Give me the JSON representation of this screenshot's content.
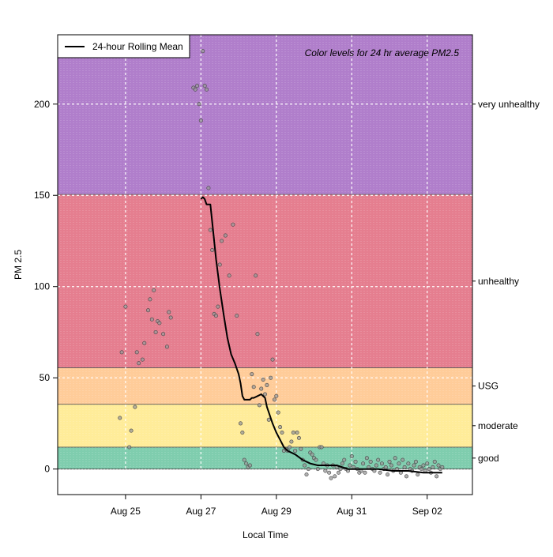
{
  "chart_data": {
    "type": "scatter",
    "title": "",
    "xlabel": "Local Time",
    "ylabel": "PM 2.5",
    "xlim": [
      22.9,
      33.9
    ],
    "ylim": [
      -14,
      238
    ],
    "x_ticks": [
      {
        "value": 24.7,
        "label": "Aug 25"
      },
      {
        "value": 26.7,
        "label": "Aug 27"
      },
      {
        "value": 28.7,
        "label": "Aug 29"
      },
      {
        "value": 30.7,
        "label": "Aug 31"
      },
      {
        "value": 32.7,
        "label": "Sep 02"
      }
    ],
    "y_ticks": [
      0,
      50,
      100,
      150,
      200
    ],
    "legend": {
      "position": "top-left",
      "entries": [
        "24-hour Rolling Mean"
      ]
    },
    "annotation": "Color levels for 24 hr average PM2.5",
    "bands": [
      {
        "name": "good",
        "label": "good",
        "from": 0,
        "to": 12,
        "color": "#7fcdae"
      },
      {
        "name": "moderate",
        "label": "moderate",
        "from": 12,
        "to": 35.5,
        "color": "#ffec99"
      },
      {
        "name": "usg",
        "label": "USG",
        "from": 35.5,
        "to": 55.5,
        "color": "#ffcc99"
      },
      {
        "name": "unhealthy",
        "label": "unhealthy",
        "from": 55.5,
        "to": 150.5,
        "color": "#e57e8f"
      },
      {
        "name": "very-unhealthy",
        "label": "very unhealthy",
        "from": 150.5,
        "to": 238,
        "color": "#b07ecb"
      }
    ],
    "series": [
      {
        "name": "hourly",
        "kind": "points",
        "x": [
          24.55,
          24.6,
          24.7,
          24.8,
          24.85,
          24.95,
          25.0,
          25.05,
          25.15,
          25.2,
          25.3,
          25.35,
          25.4,
          25.45,
          25.5,
          25.55,
          25.6,
          25.7,
          25.8,
          25.85,
          25.9,
          26.5,
          26.55,
          26.6,
          26.65,
          26.7,
          26.75,
          26.8,
          26.85,
          26.9,
          26.95,
          27.0,
          27.05,
          27.1,
          27.15,
          27.2,
          27.25,
          27.35,
          27.45,
          27.55,
          27.65,
          27.75,
          27.8,
          27.85,
          27.9,
          27.95,
          28.0,
          28.05,
          28.1,
          28.15,
          28.2,
          28.25,
          28.3,
          28.35,
          28.4,
          28.45,
          28.5,
          28.55,
          28.6,
          28.65,
          28.7,
          28.75,
          28.8,
          28.85,
          28.9,
          28.95,
          29.0,
          29.05,
          29.1,
          29.15,
          29.2,
          29.25,
          29.3,
          29.35,
          29.4,
          29.45,
          29.5,
          29.55,
          29.6,
          29.65,
          29.7,
          29.75,
          29.8,
          29.85,
          29.9,
          29.95,
          30.0,
          30.05,
          30.1,
          30.15,
          30.2,
          30.25,
          30.3,
          30.35,
          30.4,
          30.45,
          30.5,
          30.55,
          30.6,
          30.65,
          30.7,
          30.75,
          30.8,
          30.85,
          30.9,
          30.95,
          31.0,
          31.05,
          31.1,
          31.15,
          31.2,
          31.25,
          31.3,
          31.35,
          31.4,
          31.45,
          31.5,
          31.55,
          31.6,
          31.65,
          31.7,
          31.75,
          31.8,
          31.85,
          31.9,
          31.95,
          32.0,
          32.05,
          32.1,
          32.15,
          32.2,
          32.25,
          32.3,
          32.35,
          32.4,
          32.45,
          32.5,
          32.55,
          32.6,
          32.65,
          32.7,
          32.75,
          32.8,
          32.85,
          32.9,
          32.95,
          33.0,
          33.05,
          33.1
        ],
        "y": [
          28,
          64,
          89,
          12,
          21,
          34,
          64,
          58,
          60,
          69,
          87,
          93,
          82,
          98,
          75,
          81,
          80,
          74,
          67,
          86,
          83,
          209,
          208,
          210,
          200,
          191,
          229,
          210,
          208,
          154,
          131,
          120,
          85,
          84,
          89,
          112,
          125,
          128,
          106,
          134,
          84,
          25,
          20,
          5,
          3,
          1,
          2,
          52,
          45,
          106,
          74,
          35,
          44,
          49,
          41,
          46,
          27,
          50,
          60,
          38,
          40,
          31,
          23,
          20,
          10,
          11,
          10,
          12,
          15,
          20,
          10,
          20,
          17,
          11,
          5,
          2,
          -3,
          0,
          9,
          8,
          6,
          5,
          0,
          12,
          12,
          3,
          -1,
          2,
          -2,
          -5,
          2,
          -4,
          1,
          -2,
          0,
          3,
          5,
          0,
          -1,
          2,
          7,
          1,
          4,
          0,
          -2,
          -1,
          3,
          -2,
          6,
          1,
          4,
          0,
          -1,
          2,
          5,
          -2,
          3,
          0,
          1,
          -3,
          4,
          2,
          -1,
          6,
          0,
          3,
          -2,
          5,
          1,
          -4,
          3,
          0,
          -1,
          2,
          4,
          -3,
          1,
          0,
          2,
          -1,
          3,
          0,
          -2,
          1,
          4,
          -4,
          2,
          0,
          1
        ]
      },
      {
        "name": "24-hour Rolling Mean",
        "kind": "line",
        "x": [
          26.7,
          26.75,
          26.8,
          26.85,
          26.9,
          26.95,
          27.0,
          27.1,
          27.2,
          27.3,
          27.4,
          27.5,
          27.6,
          27.7,
          27.75,
          27.8,
          27.85,
          27.9,
          27.95,
          28.0,
          28.05,
          28.1,
          28.2,
          28.3,
          28.4,
          28.45,
          28.5,
          28.6,
          28.7,
          28.8,
          28.9,
          29.0,
          29.2,
          29.4,
          29.6,
          29.8,
          30.0,
          30.3,
          30.6,
          31.0,
          31.4,
          31.8,
          32.2,
          32.6,
          33.0,
          33.1
        ],
        "y": [
          148,
          149,
          148,
          145,
          145,
          145,
          135,
          115,
          99,
          85,
          72,
          63,
          58,
          52,
          47,
          40,
          38,
          38,
          38,
          38,
          39,
          39,
          40,
          41,
          39,
          34,
          31,
          25,
          20,
          16,
          12,
          10,
          8,
          5,
          3,
          2,
          2,
          2,
          0,
          0,
          0,
          -1,
          -1,
          -2,
          -2,
          -2
        ]
      }
    ]
  }
}
